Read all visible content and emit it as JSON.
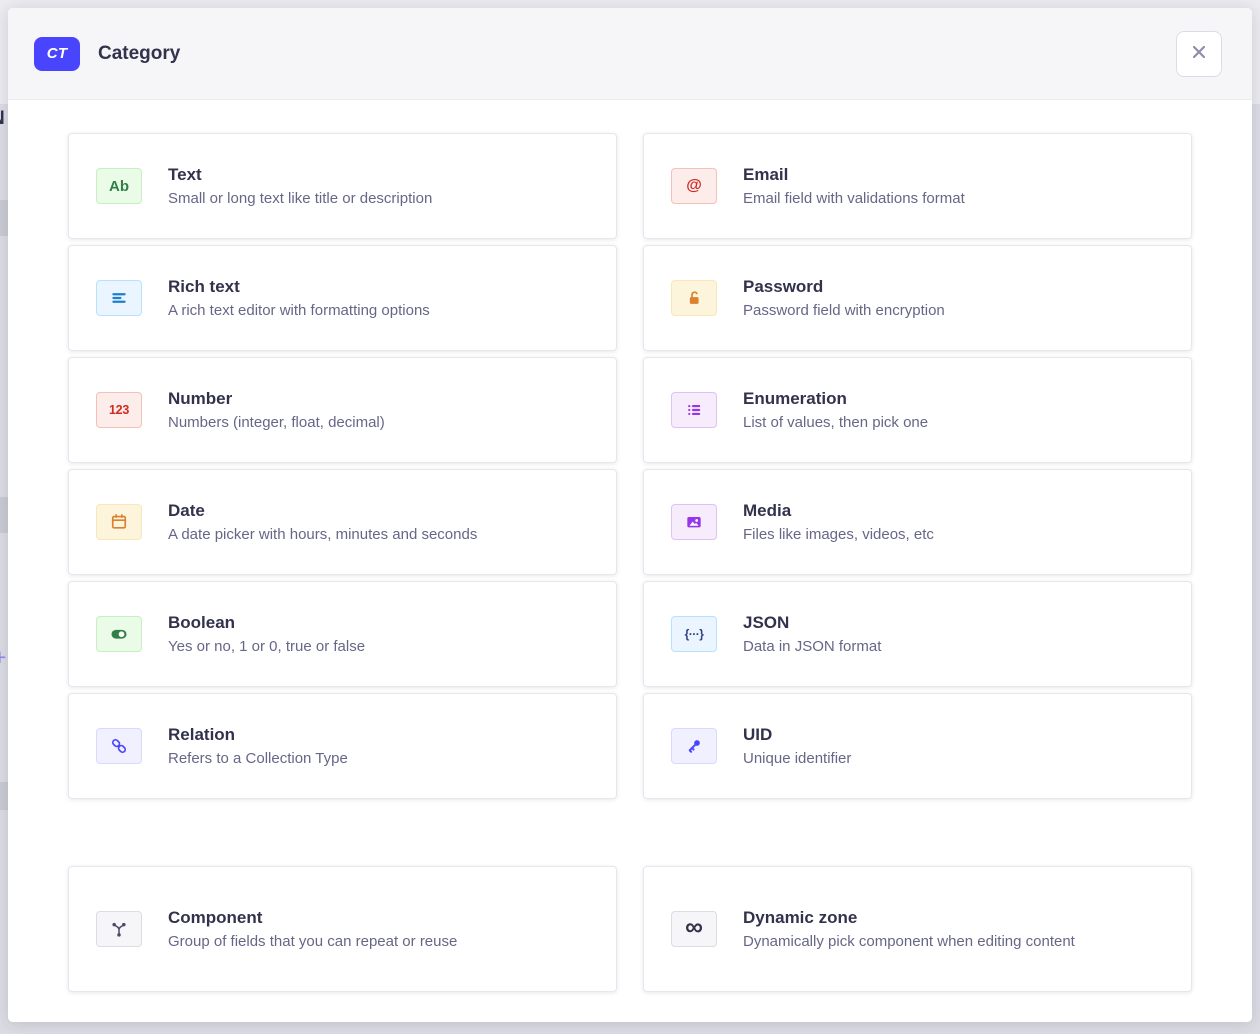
{
  "backdrop": {
    "partial_letter": "N",
    "partial_plus": "+"
  },
  "header": {
    "badge": "CT",
    "title": "Category",
    "close_label": "close"
  },
  "accent_color": "#4945ff",
  "cards_main": [
    {
      "slug": "text",
      "icon": "ab-text-icon",
      "glyph": "Ab",
      "glyph_class": "g-ab",
      "title": "Text",
      "description": "Small or long text like title or description",
      "chip": {
        "bg": "#eafbe7",
        "border": "#c6f0c2",
        "fg": "#328048"
      }
    },
    {
      "slug": "email",
      "icon": "at-sign-icon",
      "glyph": "@",
      "glyph_class": "g-at",
      "title": "Email",
      "description": "Email field with validations format",
      "chip": {
        "bg": "#fcecea",
        "border": "#f5c0b8",
        "fg": "#d02b20"
      }
    },
    {
      "slug": "richtext",
      "icon": "text-lines-icon",
      "title": "Rich text",
      "description": "A rich text editor with formatting options",
      "chip": {
        "bg": "#eaf5ff",
        "border": "#b8e1ff",
        "fg": "#1d7fd0"
      }
    },
    {
      "slug": "password",
      "icon": "lock-icon",
      "title": "Password",
      "description": "Password field with encryption",
      "chip": {
        "bg": "#fdf4dc",
        "border": "#fae7b9",
        "fg": "#d9822f"
      }
    },
    {
      "slug": "number",
      "icon": "numbers-icon",
      "glyph": "123",
      "glyph_class": "g-123",
      "title": "Number",
      "description": "Numbers (integer, float, decimal)",
      "chip": {
        "bg": "#fcecea",
        "border": "#f5c0b8",
        "fg": "#d02b20"
      }
    },
    {
      "slug": "enumeration",
      "icon": "bullet-list-icon",
      "title": "Enumeration",
      "description": "List of values, then pick one",
      "chip": {
        "bg": "#f6ecfc",
        "border": "#e0c1f4",
        "fg": "#9736e8"
      }
    },
    {
      "slug": "date",
      "icon": "calendar-icon",
      "title": "Date",
      "description": "A date picker with hours, minutes and seconds",
      "chip": {
        "bg": "#fdf4dc",
        "border": "#fae7b9",
        "fg": "#d9822f"
      }
    },
    {
      "slug": "media",
      "icon": "picture-icon",
      "title": "Media",
      "description": "Files like images, videos, etc",
      "chip": {
        "bg": "#f6ecfc",
        "border": "#e0c1f4",
        "fg": "#9736e8"
      }
    },
    {
      "slug": "boolean",
      "icon": "toggle-on-icon",
      "title": "Boolean",
      "description": "Yes or no, 1 or 0, true or false",
      "chip": {
        "bg": "#eafbe7",
        "border": "#c6f0c2",
        "fg": "#328048"
      }
    },
    {
      "slug": "json",
      "icon": "json-braces-icon",
      "glyph": "{···}",
      "glyph_class": "g-json",
      "title": "JSON",
      "description": "Data in JSON format",
      "chip": {
        "bg": "#eaf5ff",
        "border": "#b8e1ff",
        "fg": "#2f3f7d"
      }
    },
    {
      "slug": "relation",
      "icon": "chain-link-icon",
      "title": "Relation",
      "description": "Refers to a Collection Type",
      "chip": {
        "bg": "#f0f0ff",
        "border": "#d9d8ff",
        "fg": "#4945ff"
      }
    },
    {
      "slug": "uid",
      "icon": "key-icon",
      "title": "UID",
      "description": "Unique identifier",
      "chip": {
        "bg": "#f0f0ff",
        "border": "#d9d8ff",
        "fg": "#4945ff"
      }
    }
  ],
  "cards_bottom": [
    {
      "slug": "component",
      "icon": "branch-nodes-icon",
      "title": "Component",
      "description": "Group of fields that you can repeat or reuse",
      "chip": {
        "bg": "#f6f6f9",
        "border": "#dcdce4",
        "fg": "#4a4a6a"
      }
    },
    {
      "slug": "dynamiczone",
      "icon": "infinity-icon",
      "glyph": "∞",
      "glyph_class": "g-inf",
      "title": "Dynamic zone",
      "description": "Dynamically pick component when editing content",
      "desc_align": "center",
      "chip": {
        "bg": "#f6f6f9",
        "border": "#dcdce4",
        "fg": "#32324d"
      }
    }
  ]
}
